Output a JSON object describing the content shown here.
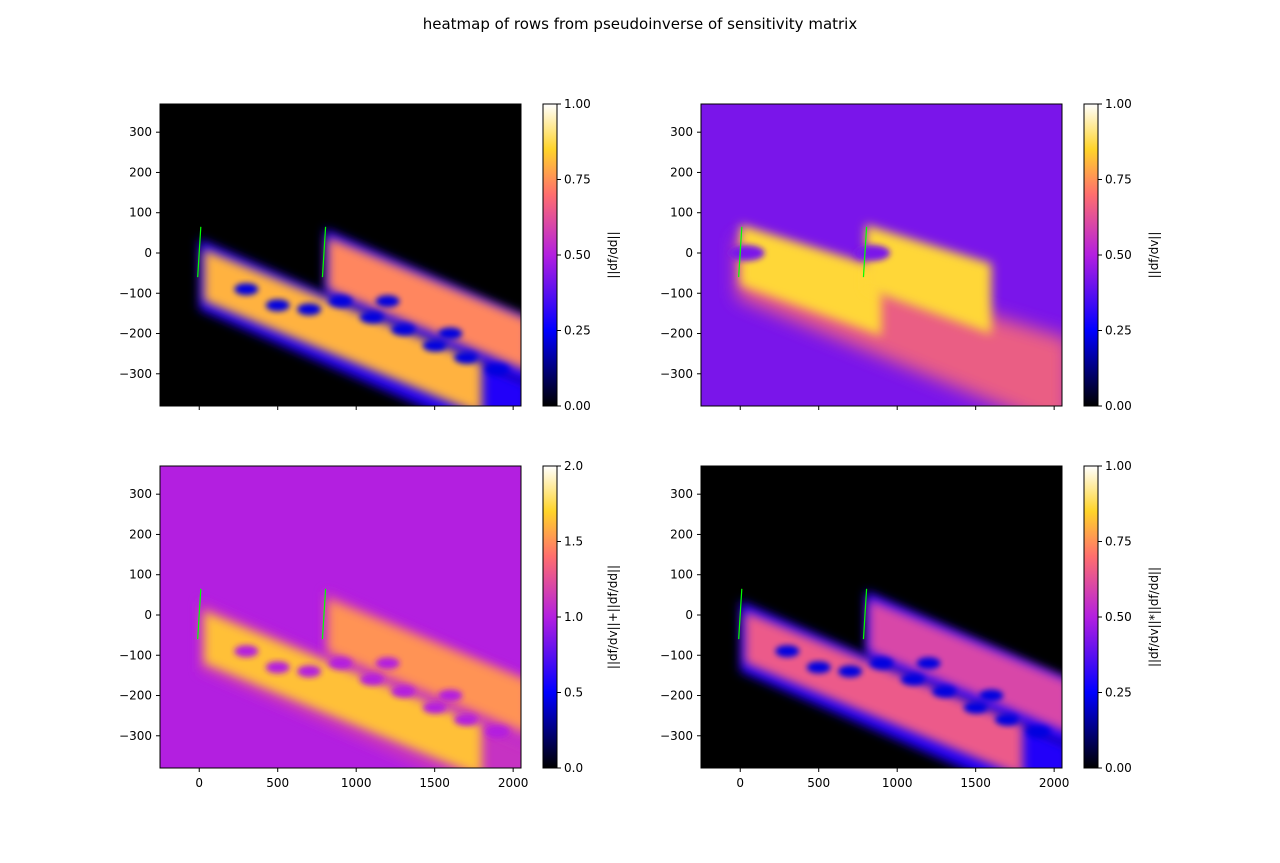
{
  "figure": {
    "title": "heatmap of rows from pseudoinverse of sensitivity matrix"
  },
  "colors": {
    "colormap": "gnuplot2",
    "colormap_stops": [
      "#000000",
      "#0000ff",
      "#b31fe0",
      "#ff6e6e",
      "#ffd42a",
      "#ffffff"
    ],
    "marker_line": "#00ff00"
  },
  "chart_data": [
    {
      "type": "heatmap",
      "position": "top-left",
      "xlim": [
        -250,
        2050
      ],
      "ylim": [
        -380,
        370
      ],
      "xticks": [
        0,
        500,
        1000,
        1500,
        2000
      ],
      "yticks": [
        -300,
        -200,
        -100,
        0,
        100,
        200,
        300
      ],
      "show_xtick_labels": false,
      "colorbar_label": "||df/dd||",
      "colorbar_range": [
        0,
        1
      ],
      "colorbar_ticks": [
        "0.00",
        "0.25",
        "0.50",
        "0.75",
        "1.00"
      ],
      "background_value": 0.0,
      "marker_lines": [
        {
          "x1": -10,
          "y1": -60,
          "x2": 10,
          "y2": 65
        },
        {
          "x1": 785,
          "y1": -60,
          "x2": 805,
          "y2": 65
        }
      ]
    },
    {
      "type": "heatmap",
      "position": "top-right",
      "xlim": [
        -250,
        2050
      ],
      "ylim": [
        -380,
        370
      ],
      "xticks": [
        0,
        500,
        1000,
        1500,
        2000
      ],
      "yticks": [
        -300,
        -200,
        -100,
        0,
        100,
        200,
        300
      ],
      "show_xtick_labels": false,
      "colorbar_label": "||df/dv||",
      "colorbar_range": [
        0,
        1
      ],
      "colorbar_ticks": [
        "0.00",
        "0.25",
        "0.50",
        "0.75",
        "1.00"
      ],
      "background_value": 0.42,
      "marker_lines": [
        {
          "x1": -10,
          "y1": -60,
          "x2": 10,
          "y2": 65
        },
        {
          "x1": 785,
          "y1": -60,
          "x2": 805,
          "y2": 65
        }
      ]
    },
    {
      "type": "heatmap",
      "position": "bottom-left",
      "xlim": [
        -250,
        2050
      ],
      "ylim": [
        -380,
        370
      ],
      "xticks": [
        0,
        500,
        1000,
        1500,
        2000
      ],
      "xtick_labels": [
        "0",
        "500",
        "1000",
        "1500",
        "2000"
      ],
      "yticks": [
        -300,
        -200,
        -100,
        0,
        100,
        200,
        300
      ],
      "show_xtick_labels": true,
      "colorbar_label": "||df/dv||+||df/dd||",
      "colorbar_range": [
        0,
        2
      ],
      "colorbar_ticks": [
        "0.0",
        "0.5",
        "1.0",
        "1.5",
        "2.0"
      ],
      "background_value": 0.5,
      "marker_lines": [
        {
          "x1": -10,
          "y1": -60,
          "x2": 10,
          "y2": 65
        },
        {
          "x1": 785,
          "y1": -60,
          "x2": 805,
          "y2": 65
        }
      ]
    },
    {
      "type": "heatmap",
      "position": "bottom-right",
      "xlim": [
        -250,
        2050
      ],
      "ylim": [
        -380,
        370
      ],
      "xticks": [
        0,
        500,
        1000,
        1500,
        2000
      ],
      "xtick_labels": [
        "0",
        "500",
        "1000",
        "1500",
        "2000"
      ],
      "yticks": [
        -300,
        -200,
        -100,
        0,
        100,
        200,
        300
      ],
      "show_xtick_labels": true,
      "colorbar_label": "||df/dv||*||df/dd||",
      "colorbar_range": [
        0,
        1
      ],
      "colorbar_ticks": [
        "0.00",
        "0.25",
        "0.50",
        "0.75",
        "1.00"
      ],
      "background_value": 0.0,
      "marker_lines": [
        {
          "x1": -10,
          "y1": -60,
          "x2": 10,
          "y2": 65
        },
        {
          "x1": 785,
          "y1": -60,
          "x2": 805,
          "y2": 65
        }
      ]
    }
  ]
}
